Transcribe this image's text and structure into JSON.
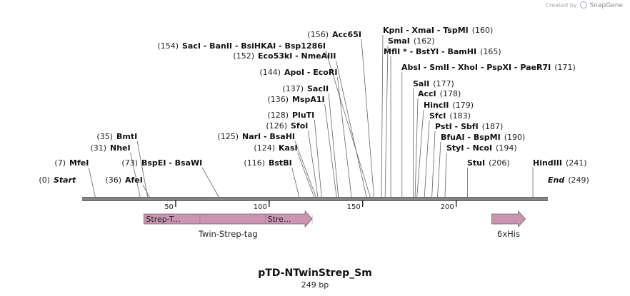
{
  "watermark": {
    "prefix": "Created by",
    "brand": "SnapGene"
  },
  "plasmid": {
    "name": "pTD-NTwinStrep_Sm",
    "length_text": "249 bp",
    "length": 249
  },
  "labels": [
    {
      "id": "start",
      "text": "Start",
      "num": "(0)",
      "site": 0,
      "italic": true,
      "side": "left"
    },
    {
      "id": "afei",
      "text": "AfeI",
      "num": "(36)",
      "site": 36,
      "side": "left"
    },
    {
      "id": "mfei",
      "text": "MfeI",
      "num": "(7)",
      "site": 7,
      "side": "left"
    },
    {
      "id": "bspei",
      "text": "BspEI  -  BsaWI",
      "num": "(73)",
      "site": 73,
      "side": "left"
    },
    {
      "id": "nhei",
      "text": "NheI",
      "num": "(31)",
      "site": 31,
      "side": "left"
    },
    {
      "id": "bmti",
      "text": "BmtI",
      "num": "(35)",
      "site": 35,
      "side": "left"
    },
    {
      "id": "bstbi",
      "text": "BstBI",
      "num": "(116)",
      "site": 116,
      "side": "left"
    },
    {
      "id": "kasi",
      "text": "KasI",
      "num": "(124)",
      "site": 124,
      "side": "left"
    },
    {
      "id": "nari",
      "text": "NarI  -  BsaHI",
      "num": "(125)",
      "site": 125,
      "side": "left"
    },
    {
      "id": "sfoi",
      "text": "SfoI",
      "num": "(126)",
      "site": 126,
      "side": "left"
    },
    {
      "id": "pluti",
      "text": "PluTI",
      "num": "(128)",
      "site": 128,
      "side": "left"
    },
    {
      "id": "mspa1i",
      "text": "MspA1I",
      "num": "(136)",
      "site": 136,
      "side": "left"
    },
    {
      "id": "sacii",
      "text": "SacII",
      "num": "(137)",
      "site": 137,
      "side": "left"
    },
    {
      "id": "apoi",
      "text": "ApoI  -  EcoRI",
      "num": "(144)",
      "site": 144,
      "side": "left"
    },
    {
      "id": "eco53ki",
      "text": "Eco53kI  -  NmeAIII",
      "num": "(152)",
      "site": 152,
      "side": "left"
    },
    {
      "id": "saci",
      "text": "SacI  -  BanII  -  BsiHKAI  -  Bsp1286I",
      "num": "(154)",
      "site": 154,
      "side": "left"
    },
    {
      "id": "acc65i",
      "text": "Acc65I",
      "num": "(156)",
      "site": 156,
      "side": "left"
    },
    {
      "id": "kpni",
      "text": "KpnI  -  XmaI  -  TspMI",
      "num": "(160)",
      "site": 160,
      "side": "right"
    },
    {
      "id": "smai",
      "text": "SmaI",
      "num": "(162)",
      "site": 162,
      "side": "right"
    },
    {
      "id": "mlui",
      "text": "MflI *  -  BstYI  -  BamHI",
      "num": "(165)",
      "site": 165,
      "side": "right"
    },
    {
      "id": "absi",
      "text": "AbsI  -  SmII  -  XhoI  -  PspXI  -  PaeR7I",
      "num": "(171)",
      "site": 171,
      "side": "right"
    },
    {
      "id": "sali",
      "text": "SalI",
      "num": "(177)",
      "site": 177,
      "side": "right"
    },
    {
      "id": "acci",
      "text": "AccI",
      "num": "(178)",
      "site": 178,
      "side": "right"
    },
    {
      "id": "hincii",
      "text": "HincII",
      "num": "(179)",
      "site": 179,
      "side": "right"
    },
    {
      "id": "sfci",
      "text": "SfcI",
      "num": "(183)",
      "site": 183,
      "side": "right"
    },
    {
      "id": "psti",
      "text": "PstI  -  SbfI",
      "num": "(187)",
      "site": 187,
      "side": "right"
    },
    {
      "id": "bfuai",
      "text": "BfuAI  -  BspMI",
      "num": "(190)",
      "site": 190,
      "side": "right"
    },
    {
      "id": "styi",
      "text": "StyI  -  NcoI",
      "num": "(194)",
      "site": 194,
      "side": "right"
    },
    {
      "id": "stui",
      "text": "StuI",
      "num": "(206)",
      "site": 206,
      "side": "right"
    },
    {
      "id": "hindiii",
      "text": "HindIII",
      "num": "(241)",
      "site": 241,
      "side": "right"
    },
    {
      "id": "end",
      "text": "End",
      "num": "(249)",
      "site": 249,
      "italic": true,
      "side": "right"
    }
  ],
  "ticks": [
    {
      "label": "50",
      "pos": 50
    },
    {
      "label": "100",
      "pos": 100
    },
    {
      "label": "150",
      "pos": 150
    },
    {
      "label": "200",
      "pos": 200
    }
  ],
  "features": [
    {
      "id": "twin-strep-tag",
      "label": "Twin-Strep-tag",
      "start": 33,
      "end": 123,
      "color": "#c995b0",
      "segments": [
        {
          "text": "Strep-T...",
          "start": 33,
          "end": 63
        },
        {
          "text": "Stre...",
          "start": 98,
          "end": 123
        }
      ]
    },
    {
      "id": "6xhis",
      "label": "6xHis",
      "start": 219,
      "end": 237,
      "color": "#c995b0",
      "segments": []
    }
  ]
}
